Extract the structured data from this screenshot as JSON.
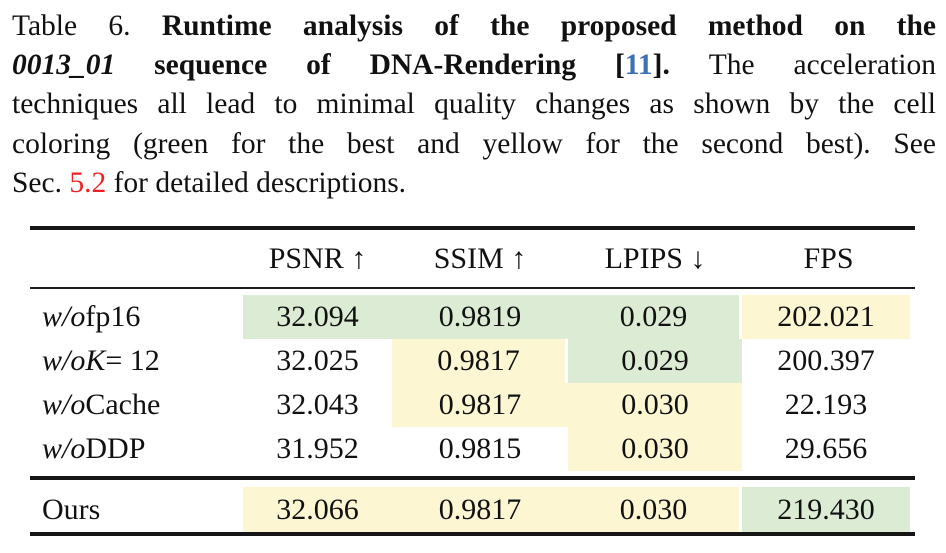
{
  "caption": {
    "lines": [
      [
        {
          "t": "Table 6. ",
          "s": "rm"
        },
        {
          "t": "Runtime analysis of the proposed method on the",
          "s": "b"
        }
      ],
      [
        {
          "t": "0013_01",
          "s": "bi"
        },
        {
          "t": " sequence of DNA-Rendering [",
          "s": "b"
        },
        {
          "t": "11",
          "s": "cite"
        },
        {
          "t": "]. ",
          "s": "b"
        },
        {
          "t": "The acceleration",
          "s": "rm"
        }
      ],
      [
        {
          "t": "techniques all lead to minimal quality changes as shown by the cell",
          "s": "rm"
        }
      ],
      [
        {
          "t": "coloring (green for the best and yellow for the second best). See",
          "s": "rm"
        }
      ],
      [
        {
          "t": "Sec. ",
          "s": "rm"
        },
        {
          "t": "5.2",
          "s": "red"
        },
        {
          "t": " for detailed descriptions.",
          "s": "rm"
        }
      ]
    ]
  },
  "colors": {
    "best_green": "#dcecd4",
    "second_yellow": "#fcf6d3",
    "citation_blue": "#3d72b5",
    "section_red": "#ee2222",
    "rule_black": "#161616"
  },
  "table": {
    "columns": [
      "PSNR ↑",
      "SSIM ↑",
      "LPIPS ↓",
      "FPS"
    ],
    "rows": [
      {
        "label": [
          {
            "t": "w/o",
            "s": "i"
          },
          {
            "t": " fp16",
            "s": "rm"
          }
        ],
        "values": [
          "32.094",
          "0.9819",
          "0.029",
          "202.021"
        ],
        "marks": [
          "best",
          "best",
          "best",
          "second"
        ]
      },
      {
        "label": [
          {
            "t": "w/o",
            "s": "i"
          },
          {
            "t": " ",
            "s": "rm"
          },
          {
            "t": "K",
            "s": "i"
          },
          {
            "t": " = 12",
            "s": "rm"
          }
        ],
        "values": [
          "32.025",
          "0.9817",
          "0.029",
          "200.397"
        ],
        "marks": [
          null,
          "second",
          "best",
          null
        ]
      },
      {
        "label": [
          {
            "t": "w/o",
            "s": "i"
          },
          {
            "t": " Cache",
            "s": "rm"
          }
        ],
        "values": [
          "32.043",
          "0.9817",
          "0.030",
          "22.193"
        ],
        "marks": [
          null,
          "second",
          "second",
          null
        ]
      },
      {
        "label": [
          {
            "t": "w/o",
            "s": "i"
          },
          {
            "t": " DDP",
            "s": "rm"
          }
        ],
        "values": [
          "31.952",
          "0.9815",
          "0.030",
          "29.656"
        ],
        "marks": [
          null,
          null,
          "second",
          null
        ]
      }
    ],
    "ours": {
      "label": [
        {
          "t": "Ours",
          "s": "rm"
        }
      ],
      "values": [
        "32.066",
        "0.9817",
        "0.030",
        "219.430"
      ],
      "marks": [
        "second",
        "second",
        "second",
        "best"
      ]
    }
  }
}
